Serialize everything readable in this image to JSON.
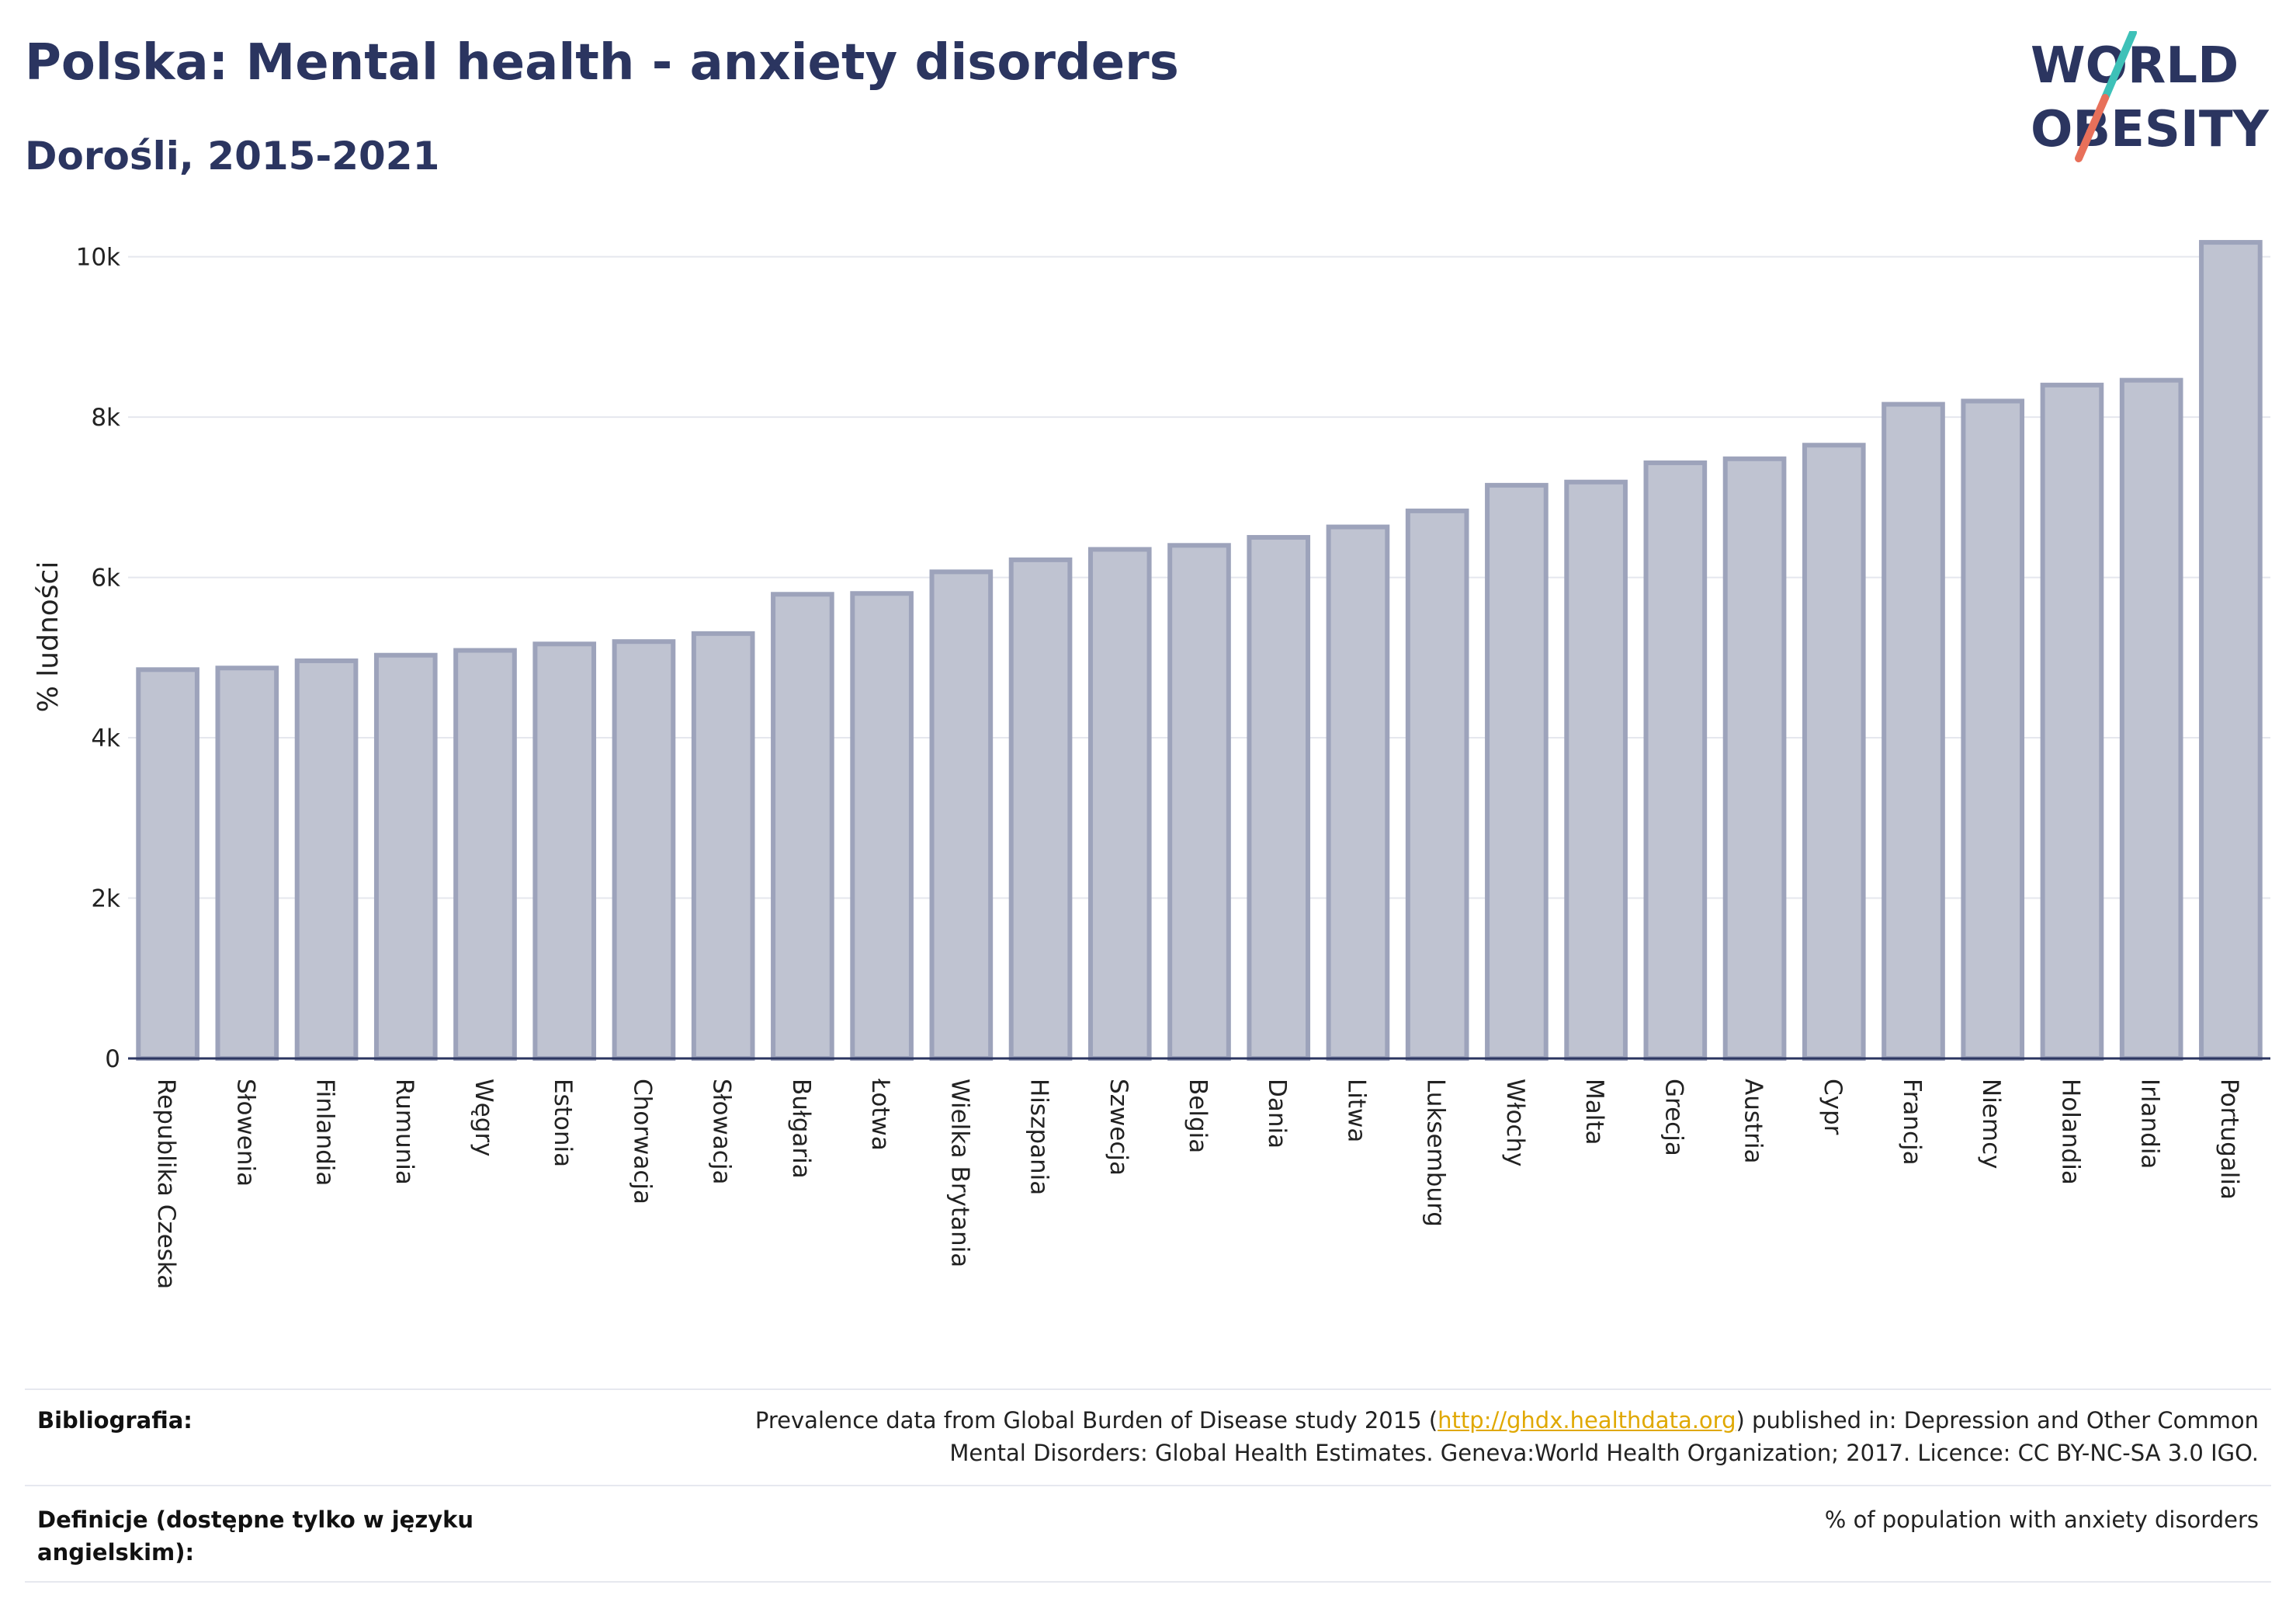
{
  "title": "Polska: Mental health - anxiety disorders",
  "subtitle": "Dorośli, 2015-2021",
  "logo": {
    "line1": "WORLD",
    "line2": "OBESITY",
    "colors": {
      "slash_top": "#3ec1b8",
      "slash_bottom": "#e8705a"
    }
  },
  "colors": {
    "bar_fill": "#bfc3d1",
    "bar_stroke": "#9da3bb",
    "axis": "#2b3560",
    "grid": "#e5e7ee",
    "text": "#2b3560"
  },
  "chart_data": {
    "type": "bar",
    "ylabel": "% ludności",
    "xlabel": "",
    "ylim": [
      0,
      10200
    ],
    "yticks": [
      0,
      2000,
      4000,
      6000,
      8000,
      10000
    ],
    "ytick_labels": [
      "0",
      "2k",
      "4k",
      "6k",
      "8k",
      "10k"
    ],
    "grid": true,
    "categories": [
      "Republika Czeska",
      "Słowenia",
      "Finlandia",
      "Rumunia",
      "Węgry",
      "Estonia",
      "Chorwacja",
      "Słowacja",
      "Bułgaria",
      "Łotwa",
      "Wielka Brytania",
      "Hiszpania",
      "Szwecja",
      "Belgia",
      "Dania",
      "Litwa",
      "Luksemburg",
      "Włochy",
      "Malta",
      "Grecja",
      "Austria",
      "Cypr",
      "Francja",
      "Niemcy",
      "Holandia",
      "Irlandia",
      "Portugalia"
    ],
    "values": [
      4850,
      4870,
      4960,
      5030,
      5090,
      5170,
      5200,
      5300,
      5790,
      5800,
      6070,
      6220,
      6350,
      6400,
      6500,
      6630,
      6830,
      7150,
      7190,
      7430,
      7480,
      7650,
      8160,
      8200,
      8400,
      8460,
      10180
    ]
  },
  "footer": {
    "bibliography_label": "Bibliografia:",
    "bibliography_pre": "Prevalence data from Global Burden of Disease study 2015 (",
    "bibliography_link": "http://ghdx.healthdata.org",
    "bibliography_post": ") published in: Depression and Other Common",
    "bibliography_line2": "Mental Disorders: Global Health Estimates. Geneva:World Health Organization; 2017. Licence: CC BY-NC-SA 3.0 IGO.",
    "definitions_label": "Definicje (dostępne tylko w języku angielskim):",
    "definitions_value": "% of population with anxiety disorders"
  }
}
